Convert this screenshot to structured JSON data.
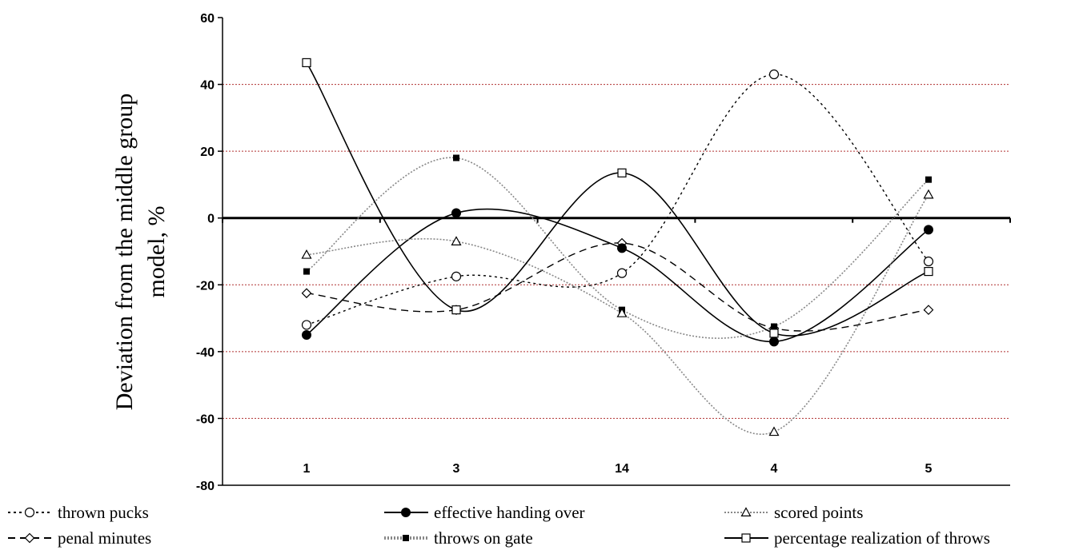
{
  "chart_data": {
    "type": "line",
    "title": "",
    "xlabel": "",
    "ylabel": "Deviation  from the middle group model, %",
    "ylabel_lines": [
      "Deviation  from the middle group",
      "model, %"
    ],
    "categories": [
      "1",
      "3",
      "14",
      "4",
      "5"
    ],
    "ylim": [
      -80,
      60
    ],
    "yticks": [
      60,
      40,
      20,
      0,
      -20,
      -40,
      -60,
      -80
    ],
    "grid": true,
    "legend_position": "bottom",
    "series": [
      {
        "name": "thrown pucks",
        "values": [
          -32,
          -17.5,
          -16.5,
          43,
          -13
        ],
        "line": "dotted-black",
        "marker": "open-circle"
      },
      {
        "name": "penal minutes",
        "values": [
          -22.5,
          -27.5,
          -7.5,
          -33,
          -27.5
        ],
        "line": "dashed-black",
        "marker": "open-diamond"
      },
      {
        "name": "effective handing over",
        "values": [
          -35,
          1.5,
          -9,
          -37,
          -3.5
        ],
        "line": "solid-black",
        "marker": "filled-circle"
      },
      {
        "name": "throws on gate",
        "values": [
          -16,
          18,
          -27.5,
          -32.5,
          11.5
        ],
        "line": "dotted-gray",
        "marker": "filled-square"
      },
      {
        "name": "scored points",
        "values": [
          -11,
          -7,
          -28.5,
          -64,
          7
        ],
        "line": "dotted-gray",
        "marker": "open-triangle"
      },
      {
        "name": "percentage realization of throws",
        "values": [
          46.5,
          -27.5,
          13.5,
          -34.5,
          -16
        ],
        "line": "solid-black",
        "marker": "open-square"
      }
    ],
    "legend_order": [
      0,
      2,
      4,
      1,
      3,
      5
    ]
  }
}
